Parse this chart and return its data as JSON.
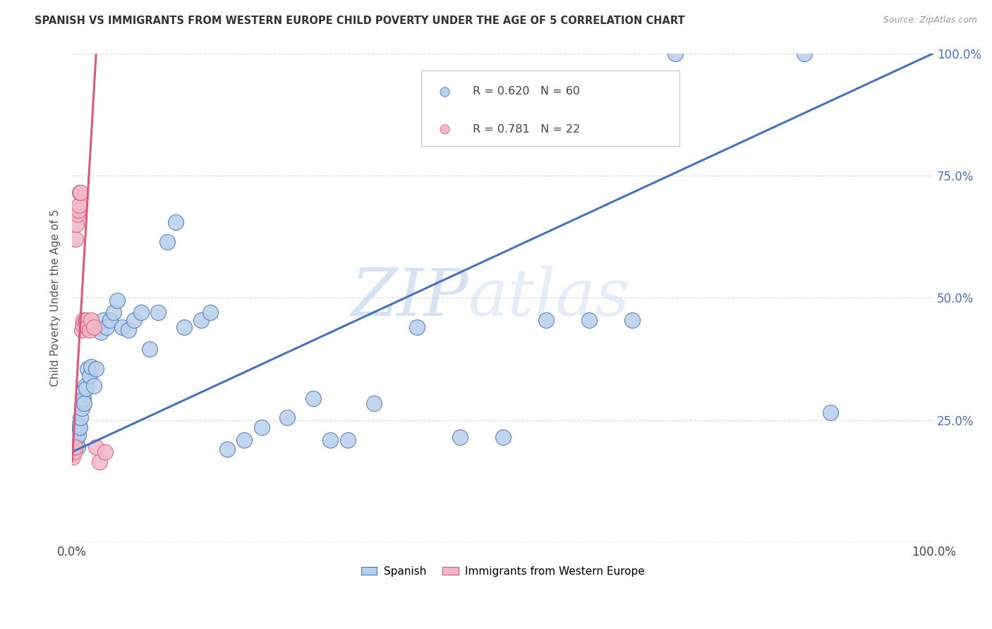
{
  "title": "SPANISH VS IMMIGRANTS FROM WESTERN EUROPE CHILD POVERTY UNDER THE AGE OF 5 CORRELATION CHART",
  "source": "Source: ZipAtlas.com",
  "ylabel": "Child Poverty Under the Age of 5",
  "r_spanish": 0.62,
  "n_spanish": 60,
  "r_immigrants": 0.781,
  "n_immigrants": 22,
  "color_spanish": "#b8d0ea",
  "color_immigrants": "#f2b8c8",
  "line_color_spanish": "#4472c4",
  "line_color_immigrants": "#e05878",
  "background_color": "#ffffff",
  "grid_color": "#e0e0e0",
  "xlim": [
    0.0,
    1.0
  ],
  "ylim": [
    0.0,
    1.0
  ],
  "blue_line_x": [
    0.0,
    1.0
  ],
  "blue_line_y": [
    0.185,
    1.0
  ],
  "pink_line_x0": 0.0,
  "pink_line_y0": 0.165,
  "pink_line_slope": 30.0,
  "spanish_x": [
    0.001,
    0.001,
    0.002,
    0.002,
    0.003,
    0.003,
    0.004,
    0.005,
    0.005,
    0.006,
    0.007,
    0.008,
    0.009,
    0.01,
    0.011,
    0.012,
    0.013,
    0.014,
    0.015,
    0.016,
    0.018,
    0.02,
    0.022,
    0.025,
    0.028,
    0.03,
    0.033,
    0.036,
    0.04,
    0.044,
    0.048,
    0.052,
    0.058,
    0.065,
    0.072,
    0.08,
    0.09,
    0.1,
    0.11,
    0.12,
    0.13,
    0.15,
    0.16,
    0.18,
    0.2,
    0.22,
    0.25,
    0.28,
    0.3,
    0.32,
    0.35,
    0.4,
    0.45,
    0.5,
    0.55,
    0.6,
    0.65,
    0.7,
    0.85,
    0.88
  ],
  "spanish_y": [
    0.205,
    0.215,
    0.22,
    0.225,
    0.21,
    0.195,
    0.22,
    0.205,
    0.215,
    0.195,
    0.22,
    0.24,
    0.235,
    0.255,
    0.275,
    0.29,
    0.295,
    0.285,
    0.32,
    0.315,
    0.355,
    0.34,
    0.36,
    0.32,
    0.355,
    0.44,
    0.43,
    0.455,
    0.44,
    0.455,
    0.47,
    0.495,
    0.44,
    0.435,
    0.455,
    0.47,
    0.395,
    0.47,
    0.615,
    0.655,
    0.44,
    0.455,
    0.47,
    0.19,
    0.21,
    0.235,
    0.255,
    0.295,
    0.21,
    0.21,
    0.285,
    0.44,
    0.215,
    0.215,
    0.455,
    0.455,
    0.455,
    1.0,
    1.0,
    0.265
  ],
  "immigrants_x": [
    0.001,
    0.002,
    0.003,
    0.004,
    0.005,
    0.006,
    0.007,
    0.008,
    0.009,
    0.01,
    0.011,
    0.012,
    0.013,
    0.015,
    0.016,
    0.018,
    0.02,
    0.022,
    0.025,
    0.028,
    0.032,
    0.038
  ],
  "immigrants_y": [
    0.175,
    0.185,
    0.195,
    0.62,
    0.65,
    0.67,
    0.68,
    0.69,
    0.715,
    0.715,
    0.435,
    0.445,
    0.455,
    0.455,
    0.455,
    0.44,
    0.435,
    0.455,
    0.44,
    0.195,
    0.165,
    0.185
  ]
}
